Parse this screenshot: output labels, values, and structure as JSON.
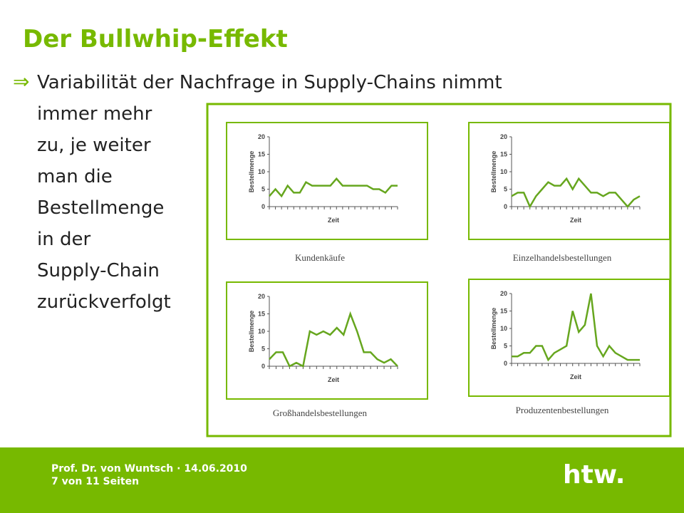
{
  "title": "Der Bullwhip-Effekt",
  "bullet": {
    "symbol": "⇒",
    "lines": [
      "Variabilität der Nachfrage in Supply-Chains nimmt",
      "immer mehr",
      "zu, je weiter",
      "man die",
      "Bestellmenge",
      "in der",
      "Supply-Chain",
      "zurückverfolgt"
    ]
  },
  "chart_data": [
    {
      "type": "line",
      "title": "Kundenkäufe",
      "xlabel": "Zeit",
      "ylabel": "Bestellmenge",
      "color": "#66a61e",
      "ylim": [
        0,
        20
      ],
      "yticks": [
        0,
        5,
        10,
        15,
        20
      ],
      "values": [
        3,
        5,
        3,
        6,
        4,
        4,
        7,
        6,
        6,
        6,
        6,
        8,
        6,
        6,
        6,
        6,
        6,
        5,
        5,
        4,
        6,
        6
      ]
    },
    {
      "type": "line",
      "title": "Einzelhandelsbestellungen",
      "xlabel": "Zeit",
      "ylabel": "Bestellmenge",
      "color": "#66a61e",
      "ylim": [
        0,
        20
      ],
      "yticks": [
        0,
        5,
        10,
        15,
        20
      ],
      "values": [
        3,
        4,
        4,
        0,
        3,
        5,
        7,
        6,
        6,
        8,
        5,
        8,
        6,
        4,
        4,
        3,
        4,
        4,
        2,
        0,
        2,
        3
      ]
    },
    {
      "type": "line",
      "title": "Großhandelsbestellungen",
      "xlabel": "Zeit",
      "ylabel": "Bestellmenge",
      "color": "#66a61e",
      "ylim": [
        0,
        20
      ],
      "yticks": [
        0,
        5,
        10,
        15,
        20
      ],
      "values": [
        2,
        4,
        4,
        0,
        1,
        0,
        10,
        9,
        10,
        9,
        11,
        9,
        15,
        10,
        4,
        4,
        2,
        1,
        2,
        0
      ]
    },
    {
      "type": "line",
      "title": "Produzentenbestellungen",
      "xlabel": "Zeit",
      "ylabel": "Bestellmenge",
      "color": "#66a61e",
      "ylim": [
        0,
        20
      ],
      "yticks": [
        0,
        5,
        10,
        15,
        20
      ],
      "values": [
        2,
        2,
        3,
        3,
        5,
        5,
        1,
        3,
        4,
        5,
        15,
        9,
        11,
        20,
        5,
        2,
        5,
        3,
        2,
        1,
        1,
        1
      ]
    }
  ],
  "footer": {
    "author": "Prof. Dr. von Wuntsch · 14.06.2010",
    "page": "7 von 11 Seiten",
    "logo": "htw."
  }
}
